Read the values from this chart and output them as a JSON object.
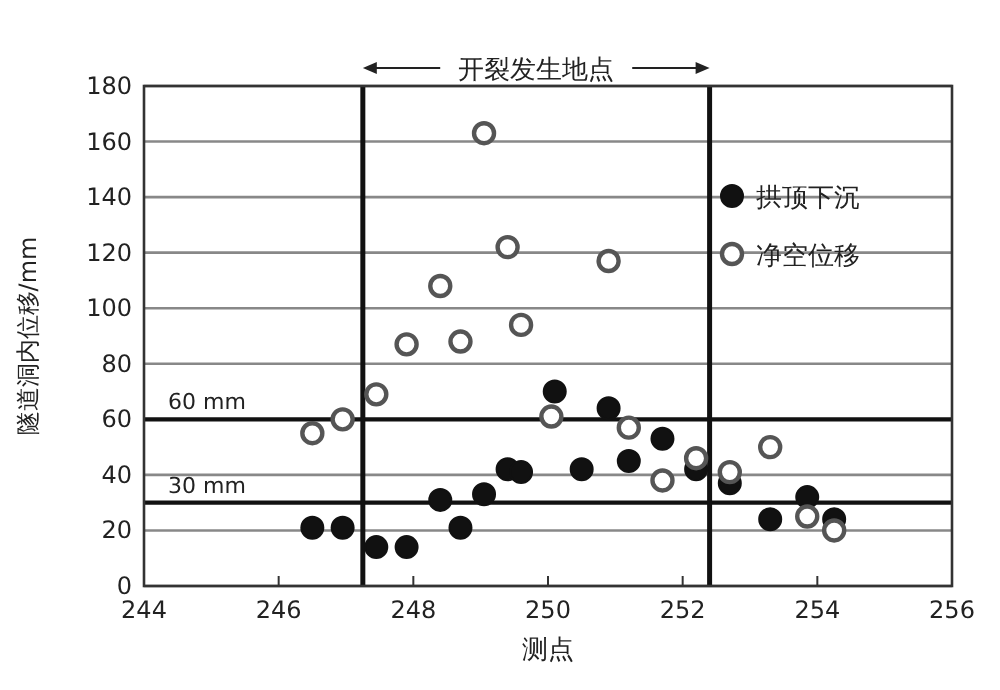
{
  "chart_data": {
    "type": "scatter",
    "xlabel": "测点",
    "ylabel": "隧道洞内位移/mm",
    "annotations": [
      "开裂发生地点"
    ],
    "xlim": [
      244,
      256
    ],
    "xticks": [
      244,
      246,
      248,
      250,
      252,
      254,
      256
    ],
    "ylim": [
      0,
      180
    ],
    "yticks": [
      0,
      20,
      40,
      60,
      80,
      100,
      120,
      140,
      160,
      180
    ],
    "grid": "y",
    "legend": "top right",
    "ref_lines": [
      {
        "axis": "y",
        "value": 60,
        "label": "60 mm"
      },
      {
        "axis": "y",
        "value": 30,
        "label": "30 mm"
      },
      {
        "axis": "x",
        "value": 247.25,
        "label": null
      },
      {
        "axis": "x",
        "value": 252.4,
        "label": null
      }
    ],
    "series": [
      {
        "name": "拱顶下沉",
        "color": "#111111",
        "marker": "circle",
        "x": [
          246.5,
          246.95,
          247.45,
          247.9,
          248.4,
          248.7,
          249.05,
          249.4,
          249.6,
          250.1,
          250.5,
          250.9,
          251.2,
          251.7,
          252.2,
          252.7,
          253.3,
          253.85,
          254.25
        ],
        "values": [
          21,
          21,
          14,
          14,
          31,
          21,
          33,
          42,
          41,
          70,
          42,
          64,
          45,
          53,
          42,
          37,
          24,
          32,
          24
        ]
      },
      {
        "name": "净空位移",
        "color": "#555555",
        "marker": "circle",
        "x": [
          246.5,
          246.95,
          247.45,
          247.9,
          248.4,
          248.7,
          249.05,
          249.4,
          249.6,
          250.05,
          250.9,
          251.2,
          251.7,
          252.2,
          252.7,
          253.3,
          253.85,
          254.25
        ],
        "values": [
          55,
          60,
          69,
          87,
          108,
          88,
          163,
          122,
          94,
          61,
          117,
          57,
          38,
          46,
          41,
          50,
          25,
          20
        ]
      }
    ]
  }
}
